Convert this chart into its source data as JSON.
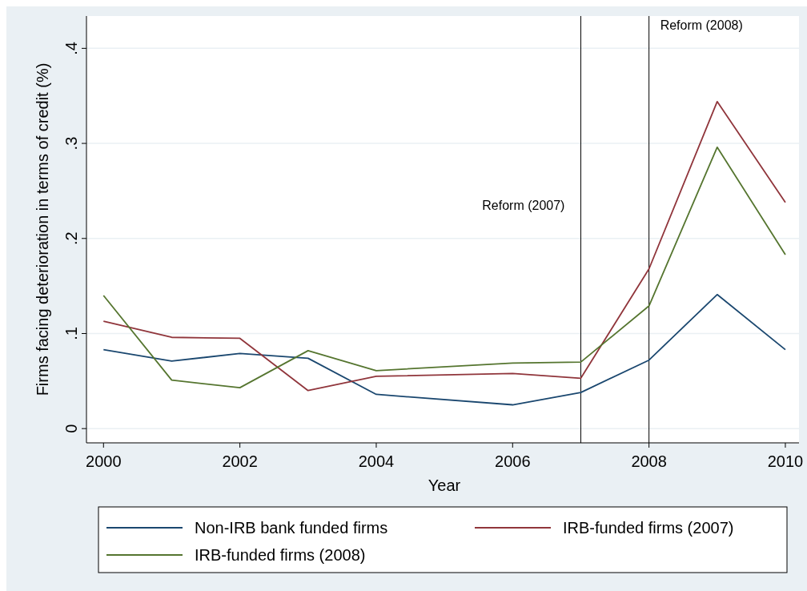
{
  "chart_data": {
    "type": "line",
    "xlabel": "Year",
    "ylabel": "Firms facing deterioration in terms of credit (%)",
    "x": [
      2000,
      2001,
      2002,
      2003,
      2004,
      2006,
      2007,
      2008,
      2009,
      2010
    ],
    "series": [
      {
        "name": "Non-IRB bank funded firms",
        "color": "#1a476f",
        "values": [
          0.083,
          0.071,
          0.079,
          0.074,
          0.036,
          0.025,
          0.038,
          0.072,
          0.141,
          0.083
        ]
      },
      {
        "name": "IRB-funded firms (2007)",
        "color": "#90353b",
        "values": [
          0.113,
          0.096,
          0.095,
          0.04,
          0.055,
          0.058,
          0.053,
          0.168,
          0.344,
          0.238
        ]
      },
      {
        "name": "IRB-funded firms (2008)",
        "color": "#55752f",
        "values": [
          0.14,
          0.051,
          0.043,
          0.082,
          0.061,
          0.069,
          0.07,
          0.129,
          0.296,
          0.183
        ]
      }
    ],
    "xlim": [
      1999.75,
      2010.2
    ],
    "xticks": [
      2000,
      2002,
      2004,
      2006,
      2008,
      2010
    ],
    "ylim": [
      -0.015,
      0.434
    ],
    "yticks": [
      0,
      {
        "value": 0.1,
        "label": ".1"
      },
      {
        "value": 0.2,
        "label": ".2"
      },
      {
        "value": 0.3,
        "label": ".3"
      },
      {
        "value": 0.4,
        "label": ".4"
      }
    ],
    "ref_lines": [
      {
        "axis": "x",
        "value": 2007,
        "label": "Reform (2007)",
        "color": "#000000"
      },
      {
        "axis": "x",
        "value": 2008,
        "label": "Reform (2008)",
        "color": "#000000"
      }
    ],
    "grid": "y",
    "legend": "bottom"
  }
}
